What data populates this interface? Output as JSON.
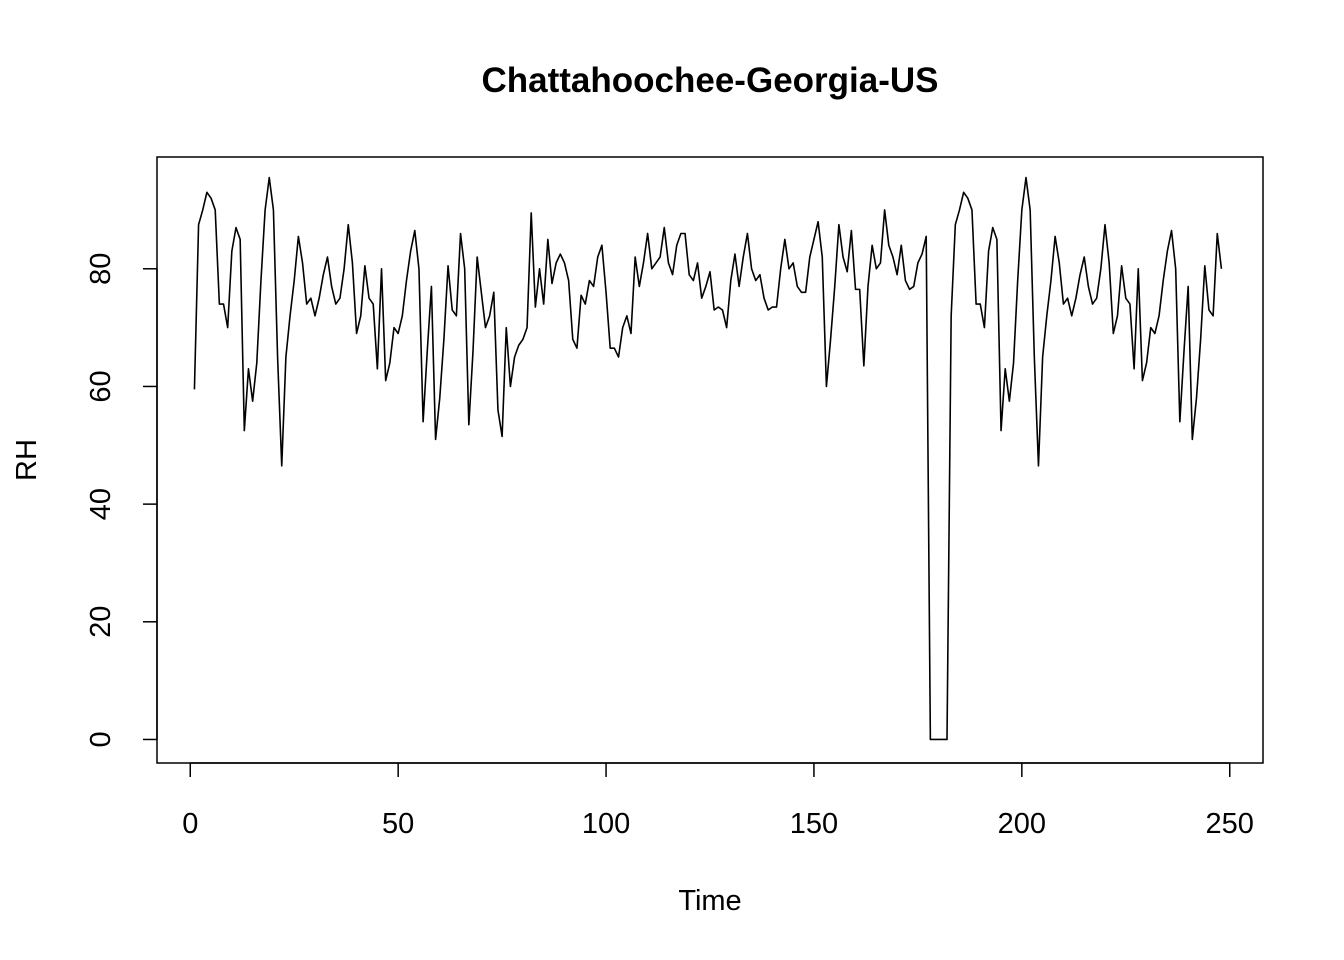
{
  "chart_data": {
    "type": "line",
    "title": "Chattahoochee-Georgia-US",
    "xlabel": "Time",
    "ylabel": "RH",
    "xlim": [
      -8,
      258
    ],
    "ylim": [
      -4,
      99
    ],
    "x_ticks": [
      0,
      50,
      100,
      150,
      200,
      250
    ],
    "y_ticks": [
      0,
      20,
      40,
      60,
      80
    ],
    "x_tick_labels": [
      "0",
      "50",
      "100",
      "150",
      "200",
      "250"
    ],
    "y_tick_labels": [
      "0",
      "20",
      "40",
      "60",
      "80"
    ],
    "grid": false,
    "legend": "none",
    "line_color": "#000000",
    "series": [
      {
        "x": [
          1,
          2,
          3,
          4,
          5,
          6,
          7,
          8,
          9,
          10,
          11,
          12,
          13,
          14,
          15,
          16,
          17,
          18,
          19,
          20,
          21,
          22,
          23,
          24,
          25,
          26,
          27,
          28,
          29,
          30,
          31,
          32,
          33,
          34,
          35,
          36,
          37,
          38,
          39,
          40,
          41,
          42,
          43,
          44,
          45,
          46,
          47,
          48,
          49,
          50,
          51,
          52,
          53,
          54,
          55,
          56,
          57,
          58,
          59,
          60,
          61,
          62,
          63,
          64,
          65,
          66,
          67,
          68,
          69,
          70,
          71,
          72,
          73,
          74,
          75,
          76,
          77,
          78,
          79,
          80,
          81,
          82,
          83,
          84,
          85,
          86,
          87,
          88,
          89,
          90,
          91,
          92,
          93,
          94,
          95,
          96,
          97,
          98,
          99,
          100,
          101,
          102,
          103,
          104,
          105,
          106,
          107,
          108,
          109,
          110,
          111,
          112,
          113,
          114,
          115,
          116,
          117,
          118,
          119,
          120,
          121,
          122,
          123,
          124,
          125,
          126,
          127,
          128,
          129,
          130,
          131,
          132,
          133,
          134,
          135,
          136,
          137,
          138,
          139,
          140,
          141,
          142,
          143,
          144,
          145,
          146,
          147,
          148,
          149,
          150,
          151,
          152,
          153,
          154,
          155,
          156,
          157,
          158,
          159,
          160,
          161,
          162,
          163,
          164,
          165,
          166,
          167,
          168,
          169,
          170,
          171,
          172,
          173,
          174,
          175,
          176,
          177,
          178,
          179,
          180,
          181,
          182,
          183,
          184,
          185,
          186,
          187,
          188,
          189,
          190,
          191,
          192,
          193,
          194,
          195,
          196,
          197,
          198,
          199,
          200,
          201,
          202,
          203,
          204,
          205,
          206,
          207,
          208,
          209,
          210,
          211,
          212,
          213,
          214,
          215,
          216,
          217,
          218,
          219,
          220,
          221,
          222,
          223,
          224,
          225,
          226,
          227,
          228,
          229,
          230,
          231,
          232,
          233,
          234,
          235,
          236,
          237,
          238,
          239,
          240,
          241,
          242,
          243,
          244,
          245,
          246,
          247,
          248
        ],
        "values": [
          59.5,
          87.5,
          90,
          93,
          92,
          90,
          74,
          74,
          70,
          83,
          87,
          85,
          52.5,
          63,
          57.5,
          64,
          78,
          90,
          95.5,
          90,
          65,
          46.5,
          65,
          72,
          78,
          85.5,
          81,
          74,
          75,
          72,
          75,
          79,
          82,
          77,
          74,
          75,
          80,
          87.5,
          81,
          69,
          72,
          80.5,
          75,
          74,
          63,
          80,
          61,
          64,
          70,
          69,
          72,
          78,
          83,
          86.5,
          80,
          54,
          66,
          77,
          51,
          58,
          68,
          80.5,
          73,
          72,
          86,
          80,
          53.5,
          66,
          82,
          76,
          70,
          72,
          76,
          56,
          51.5,
          70,
          60,
          65,
          67,
          68,
          70,
          89.5,
          73.5,
          80,
          74,
          85,
          77.5,
          81,
          82.5,
          81,
          78,
          68,
          66.5,
          75.5,
          74,
          78,
          77,
          82,
          84,
          76,
          66.5,
          66.5,
          65,
          70,
          72,
          69,
          82,
          77,
          81,
          86,
          80,
          81,
          82,
          87,
          81,
          79,
          84,
          86,
          86,
          79,
          78,
          81,
          75,
          77,
          79.5,
          73,
          73.5,
          73,
          70,
          78,
          82.5,
          77,
          82,
          86,
          80,
          78,
          79,
          75,
          73,
          73.5,
          73.5,
          80,
          85,
          80,
          81,
          77,
          76,
          76,
          82,
          85,
          88,
          82,
          60,
          68,
          77,
          87.5,
          82,
          79.5,
          86.5,
          76.5,
          76.5,
          63.5,
          77,
          84,
          80,
          81,
          90,
          84,
          82,
          79,
          84,
          78,
          76.5,
          77,
          81,
          82.5,
          85.5,
          0,
          0,
          0,
          0,
          0,
          72,
          87.5,
          90,
          93,
          92,
          90,
          74,
          74,
          70,
          83,
          87,
          85,
          52.5,
          63,
          57.5,
          64,
          78,
          90,
          95.5,
          90,
          65,
          46.5,
          65,
          72,
          78,
          85.5,
          81,
          74,
          75,
          72,
          75,
          79,
          82,
          77,
          74,
          75,
          80,
          87.5,
          81,
          69,
          72,
          80.5,
          75,
          74,
          63,
          80,
          61,
          64,
          70,
          69,
          72,
          78,
          83,
          86.5,
          80,
          54,
          66,
          77,
          51,
          58,
          68,
          80.5,
          73,
          72,
          86,
          80
        ]
      }
    ]
  }
}
